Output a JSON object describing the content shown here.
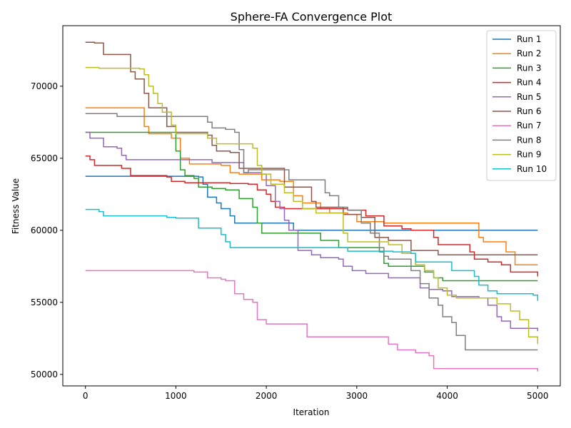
{
  "chart_data": {
    "type": "line",
    "title": "Sphere-FA Convergence Plot",
    "xlabel": "Iteration",
    "ylabel": "Fitness Value",
    "xlim": [
      -250,
      5250
    ],
    "ylim": [
      49200,
      74200
    ],
    "xticks": [
      0,
      1000,
      2000,
      3000,
      4000,
      5000
    ],
    "yticks": [
      50000,
      55000,
      60000,
      65000,
      70000
    ],
    "legend_position": "top-right",
    "grid": false,
    "series": [
      {
        "name": "Run 1",
        "color": "#1f77b4",
        "points": [
          [
            0,
            63750
          ],
          [
            1050,
            63750
          ],
          [
            1250,
            63700
          ],
          [
            1300,
            63200
          ],
          [
            1350,
            62300
          ],
          [
            1450,
            61900
          ],
          [
            1500,
            61500
          ],
          [
            1600,
            61000
          ],
          [
            1650,
            60500
          ],
          [
            2250,
            60500
          ],
          [
            2300,
            60000
          ],
          [
            5000,
            60000
          ]
        ]
      },
      {
        "name": "Run 2",
        "color": "#ff7f0e",
        "points": [
          [
            0,
            68500
          ],
          [
            600,
            68500
          ],
          [
            650,
            67200
          ],
          [
            700,
            66700
          ],
          [
            900,
            66700
          ],
          [
            950,
            66400
          ],
          [
            1050,
            65000
          ],
          [
            1150,
            64600
          ],
          [
            1250,
            64600
          ],
          [
            1500,
            64500
          ],
          [
            1600,
            64000
          ],
          [
            1700,
            63900
          ],
          [
            1950,
            63500
          ],
          [
            2150,
            63400
          ],
          [
            2300,
            62400
          ],
          [
            2400,
            61900
          ],
          [
            2600,
            61500
          ],
          [
            2700,
            61200
          ],
          [
            2900,
            61100
          ],
          [
            3000,
            60600
          ],
          [
            3200,
            60600
          ],
          [
            3300,
            60500
          ],
          [
            4300,
            60500
          ],
          [
            4350,
            59500
          ],
          [
            4400,
            59200
          ],
          [
            4550,
            59200
          ],
          [
            4650,
            58500
          ],
          [
            4750,
            57600
          ],
          [
            5000,
            57600
          ]
        ]
      },
      {
        "name": "Run 3",
        "color": "#2ca02c",
        "points": [
          [
            0,
            66800
          ],
          [
            900,
            66800
          ],
          [
            1000,
            65500
          ],
          [
            1050,
            64200
          ],
          [
            1100,
            63800
          ],
          [
            1200,
            63600
          ],
          [
            1250,
            63000
          ],
          [
            1400,
            62900
          ],
          [
            1550,
            62800
          ],
          [
            1700,
            62200
          ],
          [
            1850,
            61600
          ],
          [
            1900,
            60500
          ],
          [
            1950,
            59800
          ],
          [
            2200,
            59800
          ],
          [
            2500,
            59800
          ],
          [
            2600,
            59300
          ],
          [
            2750,
            59300
          ],
          [
            2800,
            58800
          ],
          [
            3100,
            58800
          ],
          [
            3250,
            58500
          ],
          [
            3300,
            57700
          ],
          [
            3350,
            57500
          ],
          [
            3600,
            57500
          ],
          [
            3750,
            57100
          ],
          [
            3850,
            56700
          ],
          [
            3950,
            56500
          ],
          [
            5000,
            56500
          ]
        ]
      },
      {
        "name": "Run 4",
        "color": "#d62728",
        "points": [
          [
            0,
            65150
          ],
          [
            50,
            64900
          ],
          [
            100,
            64500
          ],
          [
            400,
            64300
          ],
          [
            500,
            63800
          ],
          [
            900,
            63700
          ],
          [
            950,
            63400
          ],
          [
            1100,
            63300
          ],
          [
            1400,
            63300
          ],
          [
            1600,
            63250
          ],
          [
            1800,
            63200
          ],
          [
            1900,
            62800
          ],
          [
            2000,
            62500
          ],
          [
            2050,
            62000
          ],
          [
            2100,
            61600
          ],
          [
            2200,
            61500
          ],
          [
            2900,
            61400
          ],
          [
            3100,
            61000
          ],
          [
            3300,
            60300
          ],
          [
            3500,
            60100
          ],
          [
            3600,
            60000
          ],
          [
            3800,
            60000
          ],
          [
            3850,
            59500
          ],
          [
            3900,
            59000
          ],
          [
            4200,
            59000
          ],
          [
            4250,
            58500
          ],
          [
            4300,
            58000
          ],
          [
            4450,
            57800
          ],
          [
            4600,
            57600
          ],
          [
            4700,
            57100
          ],
          [
            5000,
            56800
          ]
        ]
      },
      {
        "name": "Run 5",
        "color": "#9467bd",
        "points": [
          [
            0,
            66800
          ],
          [
            50,
            66400
          ],
          [
            200,
            65800
          ],
          [
            350,
            65700
          ],
          [
            400,
            65200
          ],
          [
            450,
            64900
          ],
          [
            1300,
            64900
          ],
          [
            1400,
            64700
          ],
          [
            1700,
            64700
          ],
          [
            1750,
            64000
          ],
          [
            1950,
            63900
          ],
          [
            2000,
            63100
          ],
          [
            2100,
            62000
          ],
          [
            2150,
            61500
          ],
          [
            2200,
            60700
          ],
          [
            2250,
            60000
          ],
          [
            2350,
            58600
          ],
          [
            2500,
            58300
          ],
          [
            2600,
            58100
          ],
          [
            2800,
            58000
          ],
          [
            2850,
            57500
          ],
          [
            2950,
            57200
          ],
          [
            3100,
            57000
          ],
          [
            3300,
            57000
          ],
          [
            3350,
            56700
          ],
          [
            3600,
            56700
          ],
          [
            3700,
            56000
          ],
          [
            3800,
            55900
          ],
          [
            3950,
            55800
          ],
          [
            4050,
            55400
          ],
          [
            4350,
            55300
          ],
          [
            4450,
            54800
          ],
          [
            4550,
            54000
          ],
          [
            4600,
            53700
          ],
          [
            4700,
            53200
          ],
          [
            5000,
            53000
          ]
        ]
      },
      {
        "name": "Run 6",
        "color": "#8c564b",
        "points": [
          [
            0,
            73050
          ],
          [
            100,
            73000
          ],
          [
            200,
            72200
          ],
          [
            450,
            72200
          ],
          [
            500,
            71000
          ],
          [
            550,
            70500
          ],
          [
            650,
            69500
          ],
          [
            700,
            68500
          ],
          [
            900,
            67200
          ],
          [
            1000,
            66800
          ],
          [
            1350,
            66600
          ],
          [
            1400,
            65900
          ],
          [
            1450,
            65500
          ],
          [
            1600,
            65400
          ],
          [
            1700,
            64300
          ],
          [
            2200,
            63000
          ],
          [
            2350,
            63000
          ],
          [
            2500,
            62000
          ],
          [
            2550,
            61600
          ],
          [
            2850,
            61100
          ],
          [
            3050,
            60900
          ],
          [
            3200,
            59500
          ],
          [
            3350,
            59300
          ],
          [
            3600,
            58600
          ],
          [
            3900,
            58300
          ],
          [
            5000,
            58300
          ]
        ]
      },
      {
        "name": "Run 7",
        "color": "#e377c2",
        "points": [
          [
            0,
            57200
          ],
          [
            1150,
            57200
          ],
          [
            1200,
            57100
          ],
          [
            1350,
            56700
          ],
          [
            1500,
            56600
          ],
          [
            1550,
            56500
          ],
          [
            1650,
            55600
          ],
          [
            1750,
            55200
          ],
          [
            1850,
            55000
          ],
          [
            1900,
            53800
          ],
          [
            2000,
            53500
          ],
          [
            2400,
            53500
          ],
          [
            2450,
            52600
          ],
          [
            3250,
            52600
          ],
          [
            3350,
            52100
          ],
          [
            3450,
            51700
          ],
          [
            3650,
            51500
          ],
          [
            3800,
            51300
          ],
          [
            3850,
            50400
          ],
          [
            5000,
            50200
          ]
        ]
      },
      {
        "name": "Run 8",
        "color": "#7f7f7f",
        "points": [
          [
            0,
            68100
          ],
          [
            300,
            68100
          ],
          [
            350,
            67900
          ],
          [
            1300,
            67900
          ],
          [
            1350,
            67500
          ],
          [
            1400,
            67100
          ],
          [
            1550,
            67000
          ],
          [
            1650,
            66800
          ],
          [
            1700,
            65600
          ],
          [
            1750,
            64000
          ],
          [
            1800,
            64200
          ],
          [
            2200,
            64200
          ],
          [
            2250,
            63500
          ],
          [
            2550,
            63500
          ],
          [
            2650,
            62600
          ],
          [
            2700,
            62400
          ],
          [
            2800,
            61600
          ],
          [
            2900,
            61400
          ],
          [
            3050,
            60500
          ],
          [
            3150,
            59800
          ],
          [
            3250,
            58800
          ],
          [
            3300,
            58200
          ],
          [
            3350,
            58000
          ],
          [
            3600,
            57200
          ],
          [
            3700,
            56300
          ],
          [
            3800,
            55300
          ],
          [
            3900,
            54800
          ],
          [
            3950,
            54000
          ],
          [
            4050,
            53600
          ],
          [
            4100,
            52700
          ],
          [
            4200,
            51700
          ],
          [
            5000,
            51700
          ]
        ]
      },
      {
        "name": "Run 9",
        "color": "#bcbd22",
        "points": [
          [
            0,
            71300
          ],
          [
            150,
            71250
          ],
          [
            600,
            71200
          ],
          [
            650,
            70800
          ],
          [
            700,
            70000
          ],
          [
            750,
            69500
          ],
          [
            800,
            68800
          ],
          [
            850,
            68200
          ],
          [
            950,
            67300
          ],
          [
            1000,
            66700
          ],
          [
            1350,
            66400
          ],
          [
            1450,
            66000
          ],
          [
            1800,
            66000
          ],
          [
            1850,
            65700
          ],
          [
            1900,
            64500
          ],
          [
            1950,
            63900
          ],
          [
            2050,
            63200
          ],
          [
            2200,
            62600
          ],
          [
            2300,
            62000
          ],
          [
            2400,
            61500
          ],
          [
            2550,
            61200
          ],
          [
            2800,
            61200
          ],
          [
            2850,
            59800
          ],
          [
            2900,
            59200
          ],
          [
            3250,
            59200
          ],
          [
            3350,
            59000
          ],
          [
            3500,
            58400
          ],
          [
            3650,
            57600
          ],
          [
            3750,
            57200
          ],
          [
            3850,
            56700
          ],
          [
            3900,
            56000
          ],
          [
            4000,
            55500
          ],
          [
            4100,
            55300
          ],
          [
            4400,
            55300
          ],
          [
            4550,
            54900
          ],
          [
            4700,
            54400
          ],
          [
            4800,
            53800
          ],
          [
            4900,
            52600
          ],
          [
            5000,
            52100
          ]
        ]
      },
      {
        "name": "Run 10",
        "color": "#17becf",
        "points": [
          [
            0,
            61450
          ],
          [
            150,
            61300
          ],
          [
            200,
            61000
          ],
          [
            800,
            61000
          ],
          [
            900,
            60900
          ],
          [
            1000,
            60850
          ],
          [
            1250,
            60850
          ],
          [
            1250,
            60150
          ],
          [
            1450,
            60150
          ],
          [
            1500,
            59700
          ],
          [
            1550,
            59200
          ],
          [
            1600,
            58800
          ],
          [
            2850,
            58800
          ],
          [
            2900,
            58550
          ],
          [
            3200,
            58550
          ],
          [
            3400,
            58500
          ],
          [
            3600,
            58400
          ],
          [
            3650,
            57800
          ],
          [
            3950,
            57800
          ],
          [
            4050,
            57200
          ],
          [
            4200,
            57200
          ],
          [
            4300,
            56800
          ],
          [
            4350,
            56200
          ],
          [
            4450,
            55800
          ],
          [
            4550,
            55600
          ],
          [
            4950,
            55500
          ],
          [
            5000,
            55100
          ]
        ]
      }
    ]
  }
}
